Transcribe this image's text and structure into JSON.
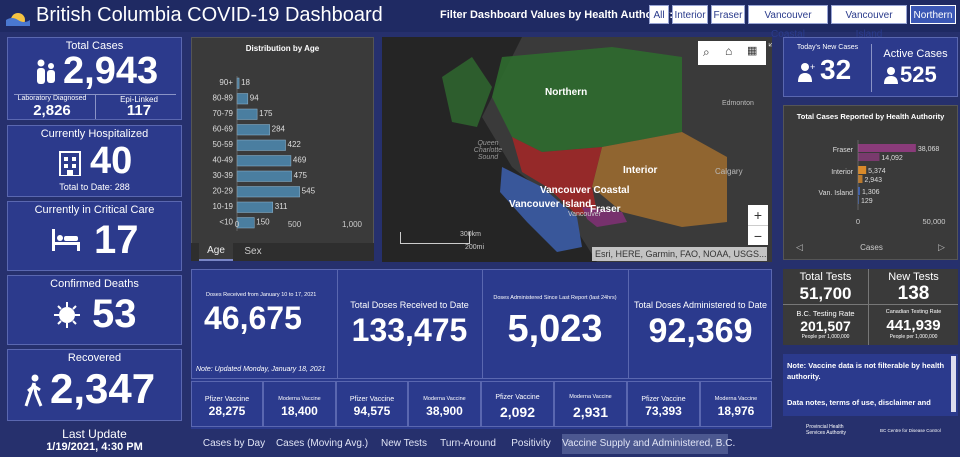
{
  "app": {
    "title": "British Columbia COVID-19 Dashboard"
  },
  "filter": {
    "label": "Filter Dashboard Values by Health Authority:",
    "options": [
      "All",
      "Interior",
      "Fraser",
      "Vancouver Coastal",
      "Vancouver Island",
      "Northern"
    ],
    "selected": "Northern"
  },
  "total_cases": {
    "title": "Total Cases",
    "value": "2,943",
    "lab_label": "Laboratory Diagnosed",
    "lab_value": "2,826",
    "epi_label": "Epi-Linked",
    "epi_value": "117"
  },
  "hospitalized": {
    "title": "Currently Hospitalized",
    "value": "40",
    "to_date": "Total to Date: 288"
  },
  "critical": {
    "title": "Currently in Critical Care",
    "value": "17"
  },
  "deaths": {
    "title": "Confirmed Deaths",
    "value": "53"
  },
  "recovered": {
    "title": "Recovered",
    "value": "2,347"
  },
  "last_update": {
    "label": "Last Update",
    "value": "1/19/2021, 4:30 PM"
  },
  "age_chart": {
    "title": "Distribution by Age",
    "tabs": [
      "Age",
      "Sex"
    ],
    "active_tab": "Age"
  },
  "chart_data": [
    {
      "type": "bar",
      "title": "Distribution by Age",
      "orientation": "horizontal",
      "categories": [
        "90+",
        "80-89",
        "70-79",
        "60-69",
        "50-59",
        "40-49",
        "30-39",
        "20-29",
        "10-19",
        "<10"
      ],
      "values": [
        18,
        94,
        175,
        284,
        422,
        469,
        475,
        545,
        311,
        150
      ],
      "xlim": [
        0,
        1000
      ],
      "xticks": [
        "0",
        "500",
        "1,000"
      ],
      "bar_color": "#4a7ea0"
    },
    {
      "type": "bar",
      "title": "Total Cases Reported by Health Authority",
      "orientation": "horizontal",
      "categories": [
        "Fraser",
        "Interior",
        "Van. Island"
      ],
      "series": [
        {
          "values": [
            38068,
            5374,
            1306
          ]
        },
        {
          "values": [
            14092,
            2943,
            129
          ]
        }
      ],
      "category_colors": [
        "#8a3b7a",
        "#d98a2a",
        "#3a5fb0"
      ],
      "xlim": [
        0,
        50000
      ],
      "xticks": [
        "0",
        "50,000"
      ],
      "xlabel": "Cases"
    }
  ],
  "map": {
    "labels": {
      "northern": "Northern",
      "interior": "Interior",
      "vancouver_coastal": "Vancouver Coastal",
      "vancouver_island": "Vancouver Island",
      "fraser": "Fraser",
      "edmonton": "Edmonton",
      "calgary": "Calgary",
      "vancouver": "Vancouver",
      "queen_charlotte": "Queen Charlotte Sound"
    },
    "scale_km": "300km",
    "scale_mi": "200mi",
    "attribution": "Esri, HERE, Garmin, FAO, NOAA, USGS...",
    "colors": {
      "northern": "#3a8a3a",
      "interior": "#b07a3a",
      "vancouver_coastal": "#b03030",
      "vancouver_island": "#4a6ab0",
      "fraser": "#8a3a7a",
      "land": "#3a3a3a",
      "water": "#222222"
    }
  },
  "new_cases": {
    "label": "Today's New Cases",
    "value": "32"
  },
  "active_cases": {
    "label": "Active Cases",
    "value": "525"
  },
  "ha_chart": {
    "title": "Total Cases Reported by Health Authority",
    "axis_label": "Cases"
  },
  "vaccine": {
    "received_period": {
      "label": "Doses Received from January 10 to 17, 2021",
      "value": "46,675",
      "note": "Note: Updated Monday, January 18, 2021"
    },
    "received_total": {
      "label": "Total Doses Received to Date",
      "value": "133,475"
    },
    "administered_recent": {
      "label": "Doses Administered Since Last Report (last 24hrs)",
      "value": "5,023"
    },
    "administered_total": {
      "label": "Total Doses Administered to Date",
      "value": "92,369"
    },
    "breakdowns": [
      {
        "label": "Pfizer Vaccine",
        "value": "28,275"
      },
      {
        "label": "Moderna Vaccine",
        "value": "18,400"
      },
      {
        "label": "Pfizer Vaccine",
        "value": "94,575"
      },
      {
        "label": "Moderna Vaccine",
        "value": "38,900"
      },
      {
        "label": "Pfizer Vaccine",
        "value": "2,092"
      },
      {
        "label": "Moderna Vaccine",
        "value": "2,931"
      },
      {
        "label": "Pfizer Vaccine",
        "value": "73,393"
      },
      {
        "label": "Moderna Vaccine",
        "value": "18,976"
      }
    ]
  },
  "tests": {
    "total_label": "Total Tests",
    "total_value": "51,700",
    "new_label": "New Tests",
    "new_value": "138",
    "bc_rate_label": "B.C. Testing Rate",
    "bc_rate_value": "201,507",
    "bc_rate_unit": "People per 1,000,000",
    "ca_rate_label": "Canadian Testing Rate",
    "ca_rate_value": "441,939",
    "ca_rate_unit": "People per 1,000,000"
  },
  "notes": {
    "line1": "Note: Vaccine data is not filterable by health authority.",
    "line2": "Data notes, terms of use, disclaimer and"
  },
  "logos": {
    "phsa": "Provincial Health Services Authority",
    "bccdc": "BC Centre for Disease Control"
  },
  "bottom_tabs": [
    "Cases by Day",
    "Cases (Moving Avg.)",
    "New Tests",
    "Turn-Around",
    "Positivity",
    "Vaccine Supply and Administered, B.C."
  ],
  "active_bottom_tab": "Vaccine Supply and Administered, B.C."
}
